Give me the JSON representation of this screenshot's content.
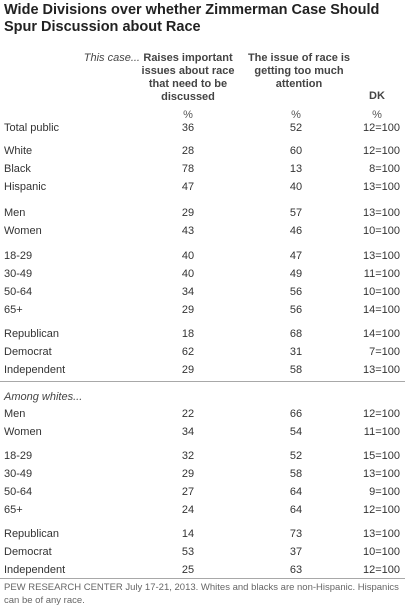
{
  "title": "Wide Divisions over whether Zimmerman Case Should Spur Discussion about Race",
  "header": {
    "stub": "This case...",
    "col1": "Raises important issues about race that need to be discussed",
    "col2": "The issue of race is getting too much attention",
    "col3": "DK",
    "pct": "%"
  },
  "rows_all": [
    {
      "label": "Total public",
      "v1": "36",
      "v2": "52",
      "v3": "12=100"
    },
    {
      "label": "White",
      "v1": "28",
      "v2": "60",
      "v3": "12=100"
    },
    {
      "label": "Black",
      "v1": "78",
      "v2": "13",
      "v3": "8=100"
    },
    {
      "label": "Hispanic",
      "v1": "47",
      "v2": "40",
      "v3": "13=100"
    },
    {
      "label": "Men",
      "v1": "29",
      "v2": "57",
      "v3": "13=100"
    },
    {
      "label": "Women",
      "v1": "43",
      "v2": "46",
      "v3": "10=100"
    },
    {
      "label": "18-29",
      "v1": "40",
      "v2": "47",
      "v3": "13=100"
    },
    {
      "label": "30-49",
      "v1": "40",
      "v2": "49",
      "v3": "11=100"
    },
    {
      "label": "50-64",
      "v1": "34",
      "v2": "56",
      "v3": "10=100"
    },
    {
      "label": "65+",
      "v1": "29",
      "v2": "56",
      "v3": "14=100"
    },
    {
      "label": "Republican",
      "v1": "18",
      "v2": "68",
      "v3": "14=100"
    },
    {
      "label": "Democrat",
      "v1": "62",
      "v2": "31",
      "v3": "7=100"
    },
    {
      "label": "Independent",
      "v1": "29",
      "v2": "58",
      "v3": "13=100"
    }
  ],
  "among_label": "Among whites...",
  "rows_whites": [
    {
      "label": "Men",
      "v1": "22",
      "v2": "66",
      "v3": "12=100"
    },
    {
      "label": "Women",
      "v1": "34",
      "v2": "54",
      "v3": "11=100"
    },
    {
      "label": "18-29",
      "v1": "32",
      "v2": "52",
      "v3": "15=100"
    },
    {
      "label": "30-49",
      "v1": "29",
      "v2": "58",
      "v3": "13=100"
    },
    {
      "label": "50-64",
      "v1": "27",
      "v2": "64",
      "v3": "9=100"
    },
    {
      "label": "65+",
      "v1": "24",
      "v2": "64",
      "v3": "12=100"
    },
    {
      "label": "Republican",
      "v1": "14",
      "v2": "73",
      "v3": "13=100"
    },
    {
      "label": "Democrat",
      "v1": "53",
      "v2": "37",
      "v3": "10=100"
    },
    {
      "label": "Independent",
      "v1": "25",
      "v2": "63",
      "v3": "12=100"
    }
  ],
  "footer": "PEW RESEARCH CENTER July 17-21, 2013. Whites and blacks are non-Hispanic. Hispanics can be of any race."
}
